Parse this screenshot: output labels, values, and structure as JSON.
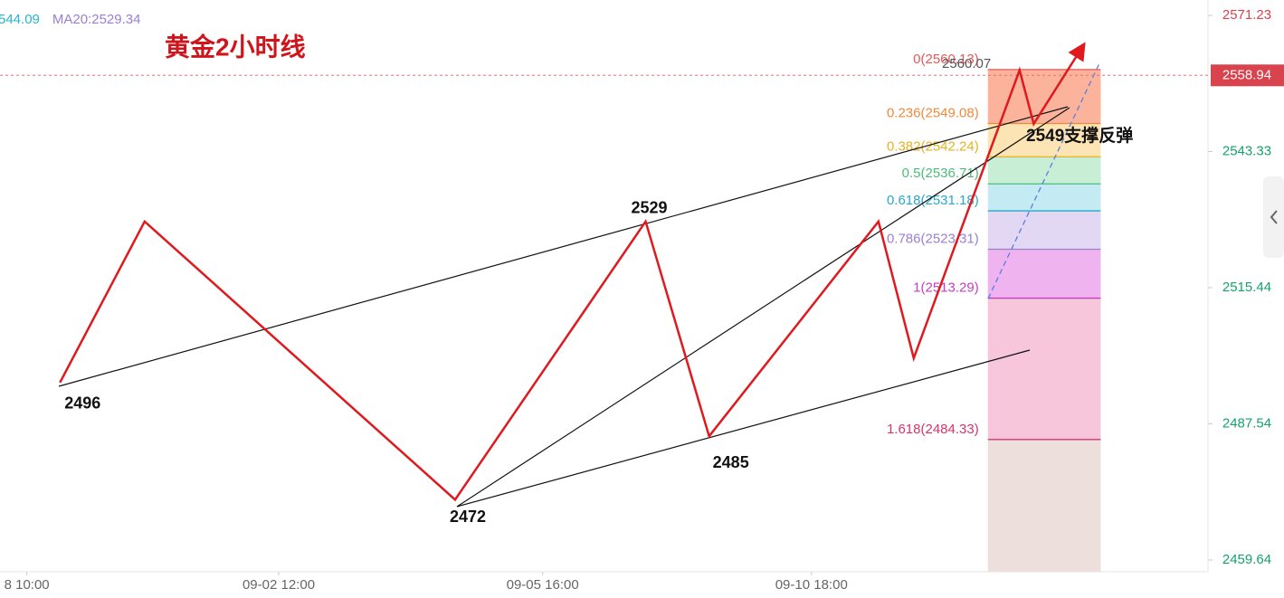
{
  "chart_data": {
    "type": "line",
    "title": "黄金2小时线",
    "indicators": [
      {
        "text": "544.09",
        "color": "#26b5c8"
      },
      {
        "text": "MA20:2529.34",
        "color": "#9a7fd1"
      }
    ],
    "xticks": [
      {
        "value": 3.3,
        "label": "8 10:00"
      },
      {
        "value": 39,
        "label": "09-02 12:00"
      },
      {
        "value": 76.4,
        "label": "09-05 16:00"
      },
      {
        "value": 114.5,
        "label": "09-10 18:00"
      }
    ],
    "xlim": [
      -0.5,
      170.7
    ],
    "ylim": [
      2459.64,
      2571.23
    ],
    "yticks": [
      2459.64,
      2487.54,
      2515.44,
      2543.33,
      2571.23
    ],
    "current_price": 2558.94,
    "series": [
      {
        "name": "zigzag",
        "color": "#e0191e",
        "x": [
          8,
          20,
          64,
          91,
          100,
          124,
          129,
          144,
          146,
          153
        ],
        "values": [
          2496,
          2529,
          2472,
          2529,
          2485,
          2529,
          2501,
          2560,
          2549,
          2565
        ]
      }
    ],
    "annotations": [
      {
        "text": "2549支撑反弹"
      },
      {
        "text": "2560.07"
      }
    ],
    "fib": {
      "x": [
        139.5,
        155.5
      ],
      "levels": [
        {
          "label": "0(2560.13)",
          "value": 2560.13,
          "color": "#e05a5a",
          "fill": "#fbb39c"
        },
        {
          "label": "0.236(2549.08)",
          "value": 2549.08,
          "color": "#f0883a",
          "fill": "#fde4b4"
        },
        {
          "label": "0.382(2542.24)",
          "value": 2542.24,
          "color": "#e8b21e",
          "fill": "#c9eed6"
        },
        {
          "label": "0.5(2536.71)",
          "value": 2536.71,
          "color": "#4cbb7a",
          "fill": "#c4eaf3"
        },
        {
          "label": "0.618(2531.18)",
          "value": 2531.18,
          "color": "#2aa8c9",
          "fill": "#e2d8f4"
        },
        {
          "label": "0.786(2523.31)",
          "value": 2523.31,
          "color": "#9a7fd1",
          "fill": "#efb4ef"
        },
        {
          "label": "1(2513.29)",
          "value": 2513.29,
          "color": "#c43ec4",
          "fill": "#f7c6da"
        },
        {
          "label": "1.618(2484.33)",
          "value": 2484.33,
          "color": "#d8336d",
          "fill": "#ede0dc"
        }
      ]
    }
  }
}
